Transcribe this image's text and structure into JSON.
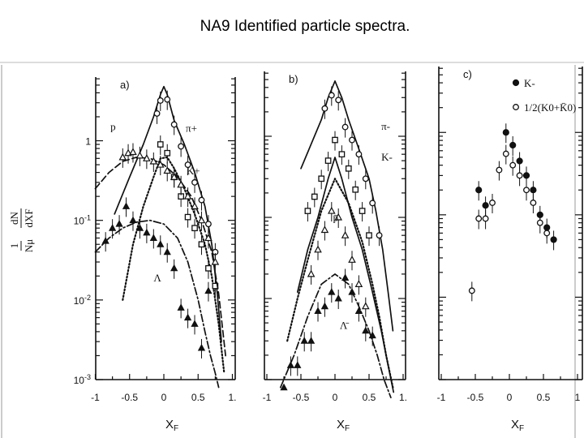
{
  "title": "NA9 Identified particle spectra.",
  "chart_data": [
    {
      "type": "scatter",
      "panel_label": "a)",
      "xlabel": "X",
      "xlabel_sub": "F",
      "ylabel": "1/N_μ dN/dX_F",
      "x_ticks": [
        "-1",
        "-0.5",
        "0",
        "0.5",
        "1."
      ],
      "y_ticks": [
        "10-3",
        "10-2",
        "10-1",
        "1"
      ],
      "xlim": [
        -1,
        1
      ],
      "ylim_log10": [
        -3,
        0.8
      ],
      "series": [
        {
          "name": "π+",
          "label_x": 0.32,
          "label_y": 1.3,
          "marker": "open-circle",
          "x": [
            -0.1,
            -0.05,
            0.05,
            0.15,
            0.25,
            0.35,
            0.45,
            0.55,
            0.65,
            0.75
          ],
          "y": [
            2.2,
            3.2,
            3.3,
            1.6,
            0.85,
            0.5,
            0.3,
            0.18,
            0.09,
            0.04
          ],
          "curve": {
            "style": "solid",
            "x": [
              -0.72,
              -0.5,
              -0.3,
              -0.15,
              -0.05,
              0.0,
              0.05,
              0.15,
              0.3,
              0.45,
              0.6,
              0.7,
              0.78,
              0.84
            ],
            "y": [
              0.12,
              0.35,
              0.9,
              2.0,
              3.8,
              4.8,
              3.8,
              1.8,
              0.9,
              0.4,
              0.15,
              0.05,
              0.012,
              0.003
            ]
          }
        },
        {
          "name": "K+",
          "label_x": 0.33,
          "label_y": 0.38,
          "marker": "open-square",
          "x": [
            -0.05,
            0.05,
            0.15,
            0.25,
            0.35,
            0.45,
            0.55,
            0.65,
            0.75
          ],
          "y": [
            0.9,
            0.7,
            0.35,
            0.2,
            0.11,
            0.08,
            0.05,
            0.025,
            0.015
          ],
          "curve": {
            "style": "dotted",
            "x": [
              -0.6,
              -0.45,
              -0.3,
              -0.15,
              -0.05,
              0.05,
              0.15,
              0.3,
              0.45,
              0.6,
              0.7,
              0.8,
              0.88
            ],
            "y": [
              0.01,
              0.05,
              0.15,
              0.35,
              0.6,
              0.62,
              0.45,
              0.25,
              0.12,
              0.05,
              0.02,
              0.005,
              0.0012
            ]
          }
        },
        {
          "name": "p",
          "label_x": -0.78,
          "label_y": 1.35,
          "marker": "open-triangle",
          "x": [
            -0.6,
            -0.52,
            -0.45,
            -0.35,
            -0.25,
            -0.15,
            -0.05,
            0.05,
            0.15,
            0.25,
            0.35,
            0.45,
            0.55,
            0.65,
            0.75
          ],
          "y": [
            0.62,
            0.7,
            0.72,
            0.65,
            0.6,
            0.55,
            0.5,
            0.42,
            0.35,
            0.28,
            0.2,
            0.15,
            0.1,
            0.06,
            0.03
          ],
          "curve": {
            "style": "dashed",
            "x": [
              -1.0,
              -0.8,
              -0.6,
              -0.4,
              -0.2,
              0.0,
              0.2,
              0.4,
              0.55,
              0.7,
              0.8,
              0.9
            ],
            "y": [
              0.25,
              0.4,
              0.55,
              0.62,
              0.6,
              0.5,
              0.35,
              0.2,
              0.1,
              0.04,
              0.012,
              0.002
            ]
          }
        },
        {
          "name": "Λ",
          "label_x": -0.15,
          "label_y": 0.017,
          "marker": "filled-triangle",
          "x": [
            -0.85,
            -0.75,
            -0.65,
            -0.55,
            -0.45,
            -0.35,
            -0.25,
            -0.15,
            -0.05,
            0.05,
            0.15,
            0.25,
            0.35,
            0.45,
            0.55,
            0.65
          ],
          "y": [
            0.055,
            0.08,
            0.09,
            0.15,
            0.1,
            0.08,
            0.07,
            0.06,
            0.05,
            0.04,
            0.025,
            0.008,
            0.006,
            0.005,
            0.0025,
            0.013
          ],
          "curve": {
            "style": "dash-dot",
            "x": [
              -1.0,
              -0.8,
              -0.6,
              -0.4,
              -0.2,
              0.0,
              0.2,
              0.35,
              0.5,
              0.6,
              0.68,
              0.75,
              0.8
            ],
            "y": [
              0.04,
              0.06,
              0.08,
              0.095,
              0.1,
              0.09,
              0.06,
              0.03,
              0.01,
              0.004,
              0.002,
              0.0012,
              0.0008
            ]
          }
        }
      ]
    },
    {
      "type": "scatter",
      "panel_label": "b)",
      "xlabel": "X",
      "xlabel_sub": "F",
      "x_ticks": [
        "-1",
        "-0.5",
        "0",
        "0.5",
        "1."
      ],
      "xlim": [
        -1,
        1
      ],
      "ylim_log10": [
        -3,
        0.8
      ],
      "series": [
        {
          "name": "π-",
          "label_x": 0.68,
          "label_y": 1.2,
          "marker": "open-circle",
          "x": [
            -0.15,
            -0.05,
            0.05,
            0.15,
            0.25,
            0.35,
            0.45,
            0.55,
            0.65
          ],
          "y": [
            2.2,
            3.2,
            2.8,
            1.3,
            0.9,
            0.6,
            0.3,
            0.15,
            0.06
          ],
          "curve": {
            "style": "solid",
            "x": [
              -0.5,
              -0.35,
              -0.2,
              -0.1,
              0.0,
              0.1,
              0.2,
              0.35,
              0.5,
              0.6,
              0.7,
              0.78,
              0.85
            ],
            "y": [
              0.4,
              0.8,
              1.6,
              3.0,
              4.8,
              3.0,
              1.6,
              0.7,
              0.3,
              0.12,
              0.04,
              0.012,
              0.004
            ]
          }
        },
        {
          "name": "K-",
          "label_x": 0.68,
          "label_y": 0.5,
          "marker": "open-square",
          "x": [
            -0.4,
            -0.3,
            -0.2,
            -0.1,
            0.0,
            0.1,
            0.2,
            0.3,
            0.4,
            0.5
          ],
          "y": [
            0.12,
            0.18,
            0.3,
            0.5,
            0.9,
            0.6,
            0.4,
            0.22,
            0.12,
            0.06
          ],
          "curve": {
            "style": "dotted",
            "x": [
              -0.7,
              -0.55,
              -0.4,
              -0.2,
              0.0,
              0.2,
              0.4,
              0.55,
              0.65,
              0.75,
              0.85
            ],
            "y": [
              0.003,
              0.01,
              0.03,
              0.12,
              0.3,
              0.15,
              0.05,
              0.015,
              0.006,
              0.002,
              0.0008
            ]
          }
        },
        {
          "name": "p̄",
          "label_x": -0.03,
          "label_y": 0.09,
          "marker": "open-triangle",
          "x": [
            -0.35,
            -0.25,
            -0.15,
            -0.05,
            0.05,
            0.15,
            0.25,
            0.35,
            0.45
          ],
          "y": [
            0.02,
            0.04,
            0.07,
            0.12,
            0.1,
            0.06,
            0.03,
            0.015,
            0.008
          ],
          "curve": {
            "style": "solid",
            "x": [
              -0.55,
              -0.4,
              -0.25,
              -0.1,
              0.0,
              0.1,
              0.25,
              0.4,
              0.55,
              0.68,
              0.78,
              0.86
            ],
            "y": [
              0.012,
              0.04,
              0.1,
              0.3,
              0.55,
              0.3,
              0.1,
              0.04,
              0.012,
              0.004,
              0.0015,
              0.0007
            ]
          }
        },
        {
          "name": "Λ̄",
          "label_x": 0.07,
          "label_y": 0.0042,
          "marker": "filled-triangle",
          "x": [
            -0.75,
            -0.65,
            -0.55,
            -0.45,
            -0.35,
            -0.25,
            -0.15,
            -0.05,
            0.05,
            0.15,
            0.25,
            0.35,
            0.45,
            0.55
          ],
          "y": [
            0.0008,
            0.0015,
            0.0015,
            0.003,
            0.003,
            0.007,
            0.008,
            0.012,
            0.01,
            0.018,
            0.012,
            0.007,
            0.004,
            0.0035
          ],
          "curve": {
            "style": "dash-dot",
            "x": [
              -0.8,
              -0.6,
              -0.4,
              -0.2,
              0.0,
              0.2,
              0.35,
              0.5,
              0.62,
              0.72,
              0.82
            ],
            "y": [
              0.0008,
              0.002,
              0.006,
              0.015,
              0.02,
              0.015,
              0.008,
              0.004,
              0.002,
              0.001,
              0.0006
            ]
          }
        }
      ]
    },
    {
      "type": "scatter",
      "panel_label": "c)",
      "xlabel": "X",
      "xlabel_sub": "F",
      "x_ticks": [
        "-1",
        "-0.5",
        "0",
        "0.5",
        "1"
      ],
      "xlim": [
        -1,
        1
      ],
      "ylim_log10": [
        -3,
        0.8
      ],
      "legend": [
        {
          "marker": "filled-circle",
          "text": "K-"
        },
        {
          "marker": "open-circle",
          "text": "1/2(K0+K̄0)"
        }
      ],
      "series": [
        {
          "name": "K-",
          "marker": "filled-circle",
          "x": [
            -0.45,
            -0.35,
            -0.05,
            0.05,
            0.15,
            0.25,
            0.35,
            0.45,
            0.55,
            0.65
          ],
          "y": [
            0.2,
            0.13,
            1.0,
            0.7,
            0.45,
            0.3,
            0.2,
            0.1,
            0.07,
            0.05
          ]
        },
        {
          "name": "1/2(K0+K̄0)",
          "marker": "open-circle",
          "x": [
            -0.55,
            -0.45,
            -0.35,
            -0.25,
            -0.15,
            -0.05,
            0.05,
            0.15,
            0.25,
            0.35,
            0.45,
            0.55
          ],
          "y": [
            0.012,
            0.09,
            0.09,
            0.14,
            0.35,
            0.55,
            0.4,
            0.3,
            0.2,
            0.14,
            0.08,
            0.06
          ]
        }
      ]
    }
  ]
}
